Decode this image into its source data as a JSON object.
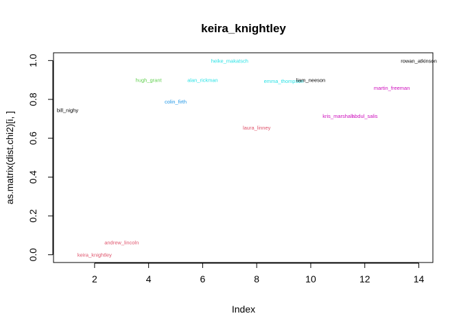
{
  "chart_data": {
    "type": "scatter",
    "title": "keira_knightley",
    "xlabel": "Index",
    "ylabel": "as.matrix(dist.chi2)[i, ]",
    "xlim": [
      0.48,
      14.52
    ],
    "ylim": [
      -0.04,
      1.04
    ],
    "xticks": [
      2,
      4,
      6,
      8,
      10,
      12,
      14
    ],
    "yticks": [
      0.0,
      0.2,
      0.4,
      0.6,
      0.8,
      1.0
    ],
    "xtick_labels": [
      "2",
      "4",
      "6",
      "8",
      "10",
      "12",
      "14"
    ],
    "ytick_labels": [
      "0.0",
      "0.2",
      "0.4",
      "0.6",
      "0.8",
      "1.0"
    ],
    "grid": false,
    "legend": "none",
    "points": [
      {
        "label": "bill_nighy",
        "x": 1,
        "y": 0.745,
        "color": "#000000"
      },
      {
        "label": "keira_knightley",
        "x": 2,
        "y": 0.0,
        "color": "#df536b"
      },
      {
        "label": "andrew_lincoln",
        "x": 3,
        "y": 0.065,
        "color": "#df536b"
      },
      {
        "label": "hugh_grant",
        "x": 4,
        "y": 0.9,
        "color": "#61d04f"
      },
      {
        "label": "colin_firth",
        "x": 5,
        "y": 0.79,
        "color": "#2297e6"
      },
      {
        "label": "alan_rickman",
        "x": 6,
        "y": 0.9,
        "color": "#28e2e5"
      },
      {
        "label": "heike_makatsch",
        "x": 7,
        "y": 1.0,
        "color": "#28e2e5"
      },
      {
        "label": "laura_linney",
        "x": 8,
        "y": 0.655,
        "color": "#df536b"
      },
      {
        "label": "emma_thompson",
        "x": 9,
        "y": 0.895,
        "color": "#28e2e5"
      },
      {
        "label": "liam_neeson",
        "x": 10,
        "y": 0.9,
        "color": "#000000"
      },
      {
        "label": "kris_marshall",
        "x": 11,
        "y": 0.715,
        "color": "#cd0bbc"
      },
      {
        "label": "abdul_salis",
        "x": 12,
        "y": 0.715,
        "color": "#cd0bbc"
      },
      {
        "label": "martin_freeman",
        "x": 13,
        "y": 0.86,
        "color": "#cd0bbc"
      },
      {
        "label": "rowan_atkinson",
        "x": 14,
        "y": 1.0,
        "color": "#000000"
      }
    ]
  }
}
